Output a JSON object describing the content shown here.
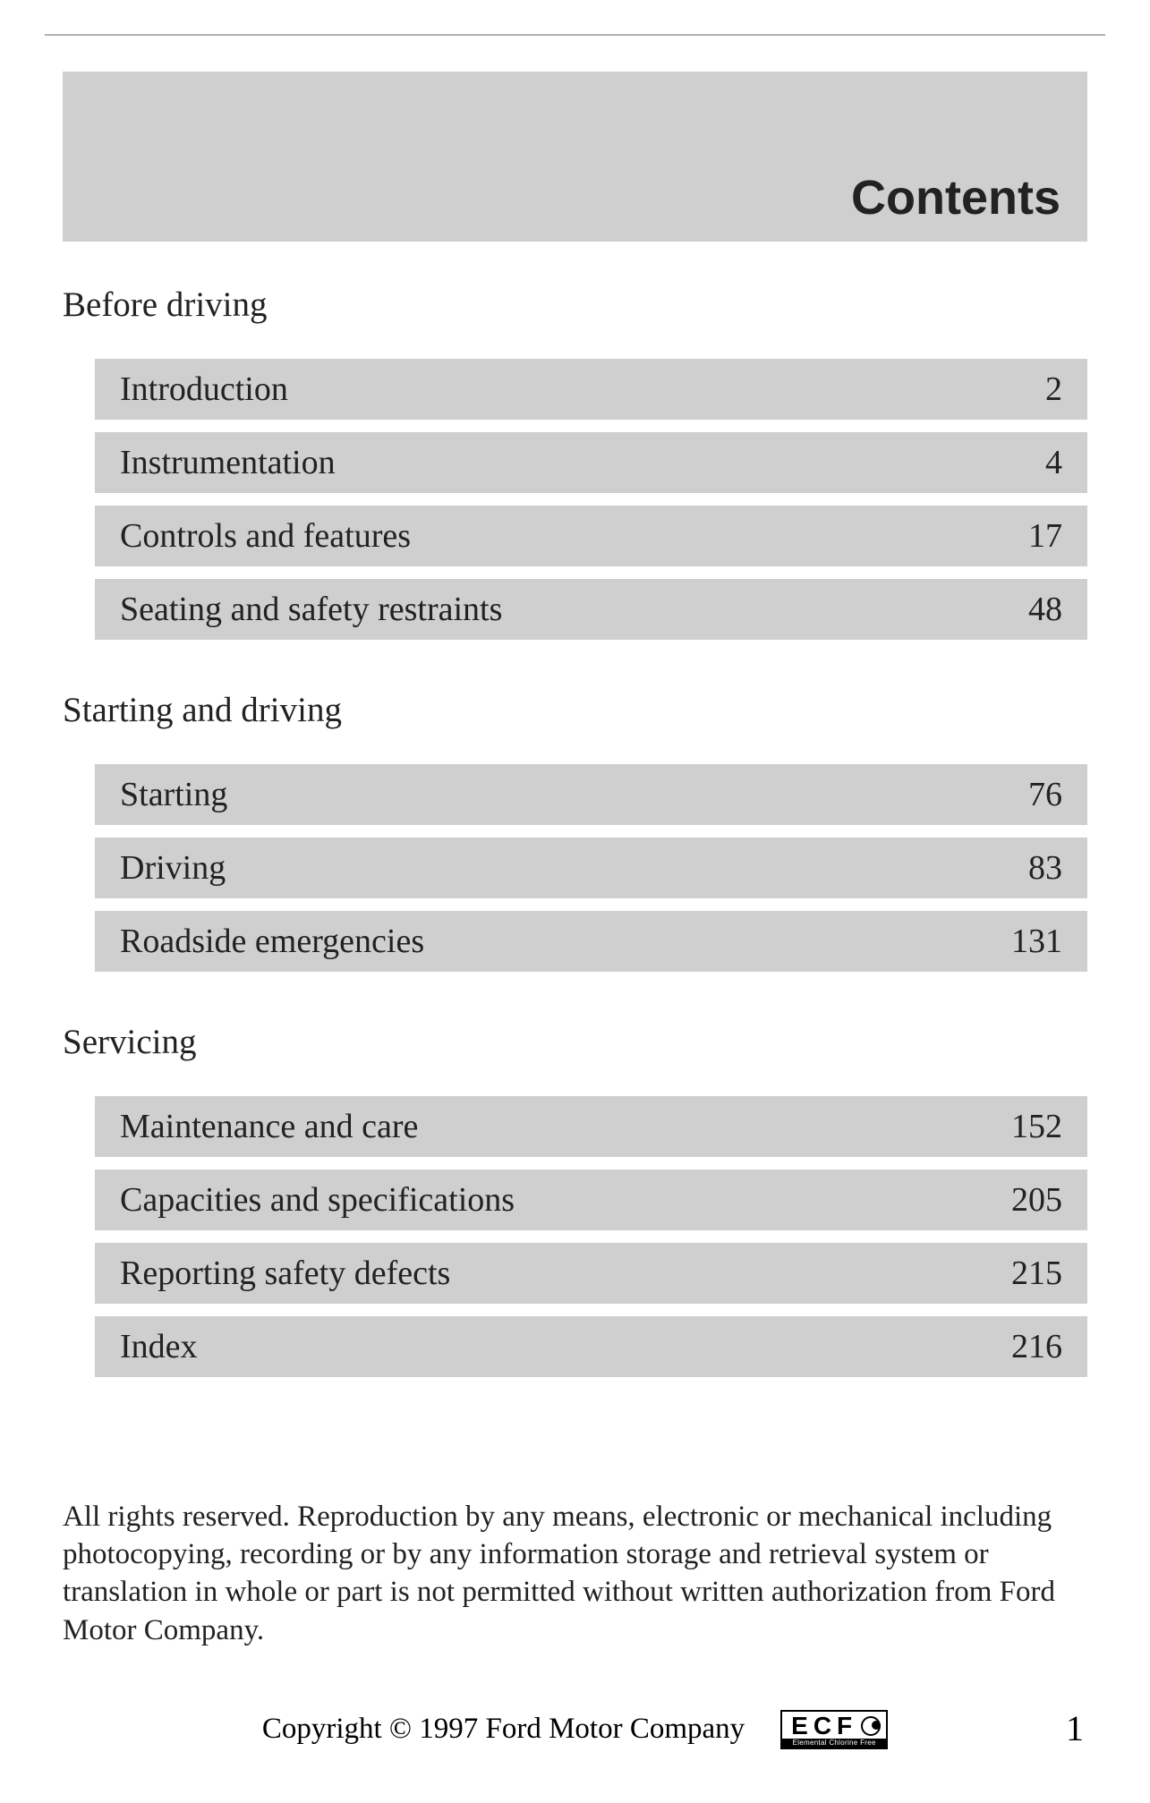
{
  "colors": {
    "banner_bg": "#cfcfcf",
    "row_bg": "#cfcfcf",
    "text": "#222222",
    "page_bg": "#ffffff",
    "rule": "#b0b0b0"
  },
  "typography": {
    "body_family": "Georgia, Times New Roman, serif",
    "header_family": "Arial, Helvetica, sans-serif",
    "header_fontsize_pt": 40,
    "section_fontsize_pt": 29,
    "row_fontsize_pt": 28,
    "legal_fontsize_pt": 25
  },
  "header": {
    "title": "Contents"
  },
  "sections": [
    {
      "heading": "Before driving",
      "items": [
        {
          "label": "Introduction",
          "page": "2"
        },
        {
          "label": "Instrumentation",
          "page": "4"
        },
        {
          "label": "Controls and features",
          "page": "17"
        },
        {
          "label": "Seating and safety restraints",
          "page": "48"
        }
      ]
    },
    {
      "heading": "Starting and driving",
      "items": [
        {
          "label": "Starting",
          "page": "76"
        },
        {
          "label": "Driving",
          "page": "83"
        },
        {
          "label": "Roadside emergencies",
          "page": "131"
        }
      ]
    },
    {
      "heading": "Servicing",
      "items": [
        {
          "label": "Maintenance and care",
          "page": "152"
        },
        {
          "label": "Capacities and specifications",
          "page": "205"
        },
        {
          "label": "Reporting safety defects",
          "page": "215"
        },
        {
          "label": "Index",
          "page": "216"
        }
      ]
    }
  ],
  "legal": "All rights reserved. Reproduction by any means, electronic or mechanical including photocopying, recording or by any information storage and retrieval system or translation in whole or part is not permitted without written authorization from Ford Motor Company.",
  "copyright": "Copyright © 1997 Ford Motor Company",
  "badge": {
    "letters": "ECF",
    "subtext": "Elemental Chlorine Free"
  },
  "page_number": "1"
}
